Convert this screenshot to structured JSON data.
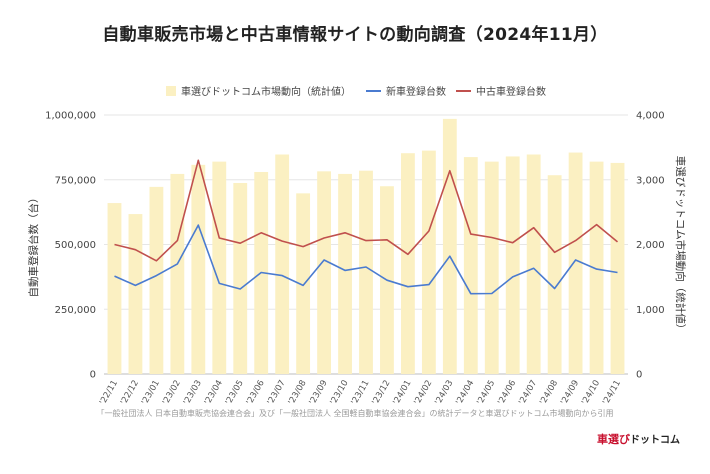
{
  "chart_data": {
    "type": "bar+line",
    "title": "自動車販売市場と中古車情報サイトの動向調査（2024年11月）",
    "categories": [
      "'22/11",
      "'22/12",
      "'23/01",
      "'23/02",
      "'23/03",
      "'23/04",
      "'23/05",
      "'23/06",
      "'23/07",
      "'23/08",
      "'23/09",
      "'23/10",
      "'23/11",
      "'23/12",
      "'24/01",
      "'24/02",
      "'24/03",
      "'24/04",
      "'24/05",
      "'24/06",
      "'24/07",
      "'24/08",
      "'24/09",
      "'24/10",
      "'24/11"
    ],
    "series": [
      {
        "name": "車選びドットコム市場動向（統計値）",
        "kind": "bar",
        "axis": "right",
        "color": "#fbf0c2",
        "values": [
          2640,
          2470,
          2890,
          3090,
          3230,
          3280,
          2950,
          3120,
          3390,
          2790,
          3130,
          3090,
          3140,
          2900,
          3410,
          3450,
          3940,
          3350,
          3280,
          3360,
          3390,
          3070,
          3420,
          3280,
          3260
        ]
      },
      {
        "name": "新車登録台数",
        "kind": "line",
        "axis": "left",
        "color": "#4a7bd0",
        "values": [
          378000,
          342000,
          380000,
          425000,
          575000,
          350000,
          328000,
          392000,
          380000,
          342000,
          440000,
          400000,
          413000,
          362000,
          337000,
          345000,
          455000,
          310000,
          311000,
          375000,
          408000,
          330000,
          440000,
          405000,
          392000
        ]
      },
      {
        "name": "中古車登録台数",
        "kind": "line",
        "axis": "left",
        "color": "#c0504d",
        "values": [
          500000,
          480000,
          437000,
          515000,
          825000,
          525000,
          505000,
          545000,
          513000,
          492000,
          525000,
          545000,
          515000,
          518000,
          462000,
          552000,
          785000,
          540000,
          527000,
          507000,
          565000,
          470000,
          515000,
          577000,
          510000
        ]
      }
    ],
    "y_left": {
      "label": "自動車登録台数（台）",
      "min": 0,
      "max": 1000000,
      "ticks": [
        0,
        250000,
        500000,
        750000,
        1000000
      ],
      "tick_labels": [
        "0",
        "250,000",
        "500,000",
        "750,000",
        "1,000,000"
      ]
    },
    "y_right": {
      "label": "車選びドットコム市場動向（統計値）",
      "min": 0,
      "max": 4000,
      "ticks": [
        0,
        1000,
        2000,
        3000,
        4000
      ],
      "tick_labels": [
        "0",
        "1,000",
        "2,000",
        "3,000",
        "4,000"
      ]
    },
    "grid": true,
    "legend_position": "top"
  },
  "source_note": "「一般社団法人 日本自動車販売協会連合会」及び「一般社団法人 全国軽自動車協会連合会」の統計データと車選びドットコム市場動向から引用",
  "brand": {
    "part1": "車選び",
    "part2": "ドットコム"
  }
}
